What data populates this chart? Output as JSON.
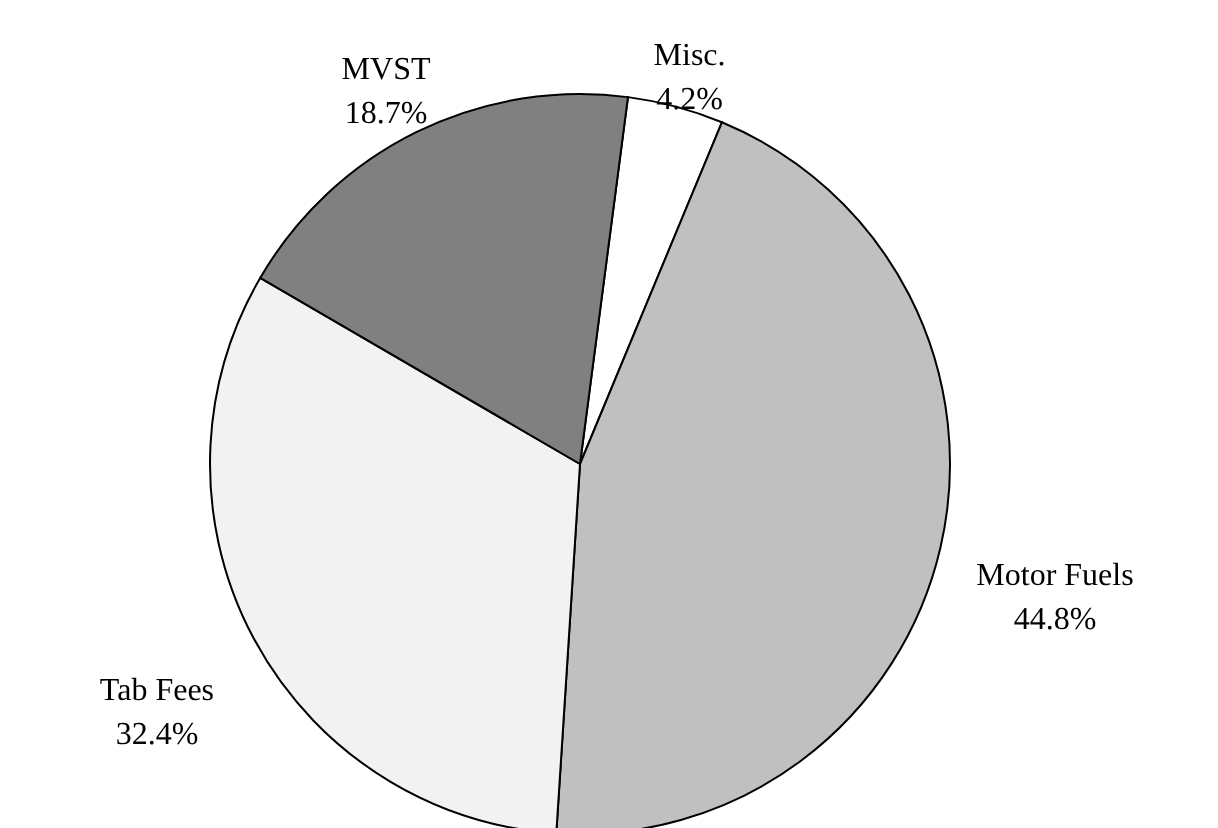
{
  "chart_data": {
    "type": "pie",
    "categories": [
      "Misc.",
      "Motor Fuels",
      "Tab Fees",
      "MVST"
    ],
    "values": [
      4.2,
      44.8,
      32.4,
      18.7
    ],
    "value_labels": [
      "4.2%",
      "44.8%",
      "32.4%",
      "18.7%"
    ],
    "colors": [
      "#ffffff",
      "#c0c0c0",
      "#f2f2f2",
      "#808080"
    ]
  }
}
